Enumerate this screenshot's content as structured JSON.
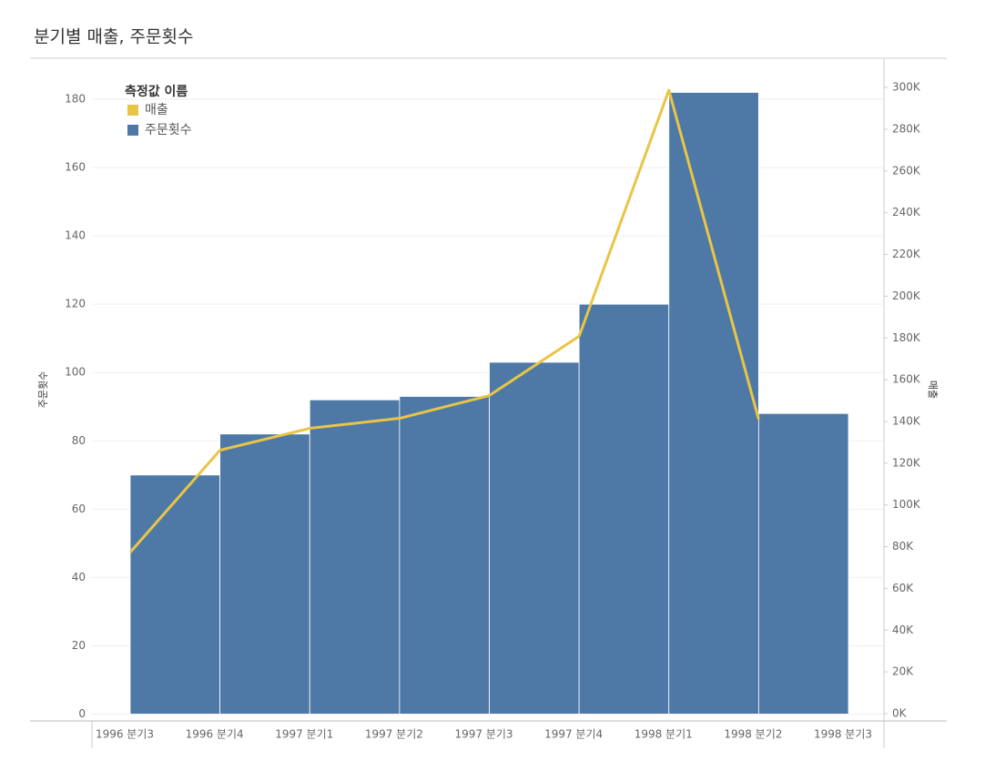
{
  "chart_data": {
    "type": "bar-line",
    "title": "분기별 매출, 주문횟수",
    "legend_title": "측정값 이름",
    "legend": "top-left",
    "grid": true,
    "categories": [
      "1996 분기3",
      "1996 분기4",
      "1997 분기1",
      "1997 분기2",
      "1997 분기3",
      "1997 분기4",
      "1998 분기1",
      "1998 분기2",
      "1998 분기3"
    ],
    "ylabel": "주문횟수",
    "y2label": "매출",
    "ylim": [
      -2,
      192
    ],
    "yticks": [
      0,
      20,
      40,
      60,
      80,
      100,
      120,
      140,
      160,
      180
    ],
    "y2lim": [
      -3500,
      314000
    ],
    "y2ticks": [
      {
        "value": 0,
        "label": "0K"
      },
      {
        "value": 20000,
        "label": "20K"
      },
      {
        "value": 40000,
        "label": "40K"
      },
      {
        "value": 60000,
        "label": "60K"
      },
      {
        "value": 80000,
        "label": "80K"
      },
      {
        "value": 100000,
        "label": "100K"
      },
      {
        "value": 120000,
        "label": "120K"
      },
      {
        "value": 140000,
        "label": "140K"
      },
      {
        "value": 160000,
        "label": "160K"
      },
      {
        "value": 180000,
        "label": "180K"
      },
      {
        "value": 200000,
        "label": "200K"
      },
      {
        "value": 220000,
        "label": "220K"
      },
      {
        "value": 240000,
        "label": "240K"
      },
      {
        "value": 260000,
        "label": "260K"
      },
      {
        "value": 280000,
        "label": "280K"
      },
      {
        "value": 300000,
        "label": "300K"
      }
    ],
    "series": [
      {
        "name": "매출",
        "color": "#e9c545",
        "type": "line",
        "axis": "y2",
        "values": [
          77300,
          126200,
          136700,
          141500,
          152400,
          180800,
          298700,
          141000,
          null
        ]
      },
      {
        "name": "주문횟수",
        "color": "#4e79a7",
        "type": "bar",
        "axis": "y",
        "values": [
          70,
          82,
          92,
          93,
          103,
          120,
          182,
          88,
          null
        ]
      }
    ]
  }
}
